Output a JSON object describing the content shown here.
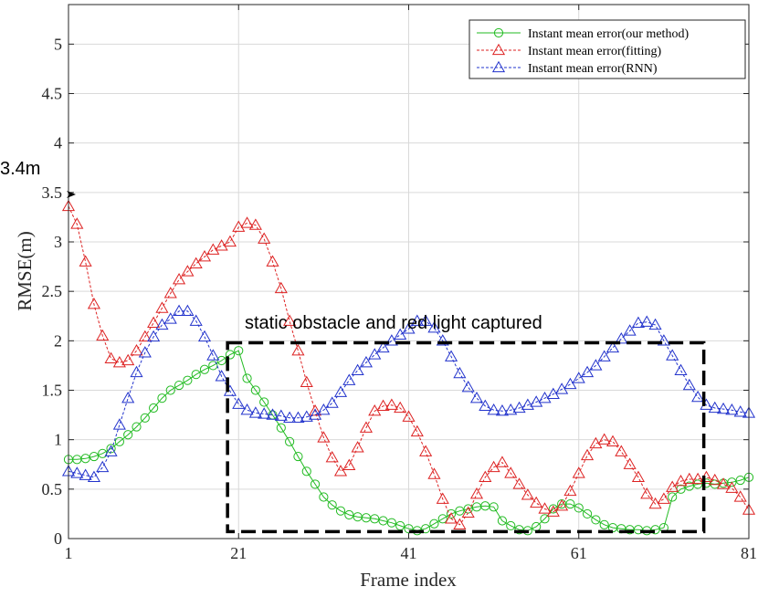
{
  "chart_data": {
    "type": "line",
    "xlabel": "Frame index",
    "ylabel": "RMSE(m)",
    "xlim": [
      1,
      81
    ],
    "ylim": [
      0,
      5.4
    ],
    "xticks": [
      "1",
      "21",
      "41",
      "61",
      "81"
    ],
    "yticks": [
      "0",
      "0.5",
      "1",
      "1.5",
      "2",
      "2.5",
      "3",
      "3.5",
      "4",
      "4.5",
      "5"
    ],
    "grid": true,
    "legend_position": "top-right",
    "annotations": {
      "start_label": "3.4m",
      "start_value": 3.48,
      "box_label": "static obstacle and red light captured",
      "box_x_range": [
        19.7,
        75.7
      ],
      "box_y_range": [
        0.07,
        1.98
      ]
    },
    "x": [
      1,
      2,
      3,
      4,
      5,
      6,
      7,
      8,
      9,
      10,
      11,
      12,
      13,
      14,
      15,
      16,
      17,
      18,
      19,
      20,
      21,
      22,
      23,
      24,
      25,
      26,
      27,
      28,
      29,
      30,
      31,
      32,
      33,
      34,
      35,
      36,
      37,
      38,
      39,
      40,
      41,
      42,
      43,
      44,
      45,
      46,
      47,
      48,
      49,
      50,
      51,
      52,
      53,
      54,
      55,
      56,
      57,
      58,
      59,
      60,
      61,
      62,
      63,
      64,
      65,
      66,
      67,
      68,
      69,
      70,
      71,
      72,
      73,
      74,
      75,
      76,
      77,
      78,
      79,
      80,
      81
    ],
    "series": [
      {
        "name": "Instant mean error(our method)",
        "color": "#22bb22",
        "dash": "solid",
        "marker": "circle",
        "values": [
          0.8,
          0.8,
          0.81,
          0.83,
          0.86,
          0.91,
          0.98,
          1.05,
          1.13,
          1.22,
          1.32,
          1.42,
          1.5,
          1.55,
          1.6,
          1.66,
          1.71,
          1.75,
          1.8,
          1.86,
          1.9,
          1.62,
          1.5,
          1.38,
          1.25,
          1.12,
          0.98,
          0.83,
          0.68,
          0.55,
          0.42,
          0.34,
          0.28,
          0.24,
          0.22,
          0.21,
          0.2,
          0.18,
          0.16,
          0.13,
          0.1,
          0.08,
          0.1,
          0.15,
          0.2,
          0.25,
          0.28,
          0.3,
          0.32,
          0.33,
          0.32,
          0.18,
          0.13,
          0.09,
          0.08,
          0.12,
          0.2,
          0.3,
          0.35,
          0.35,
          0.31,
          0.25,
          0.19,
          0.14,
          0.11,
          0.1,
          0.09,
          0.09,
          0.08,
          0.09,
          0.11,
          0.42,
          0.5,
          0.53,
          0.55,
          0.56,
          0.55,
          0.56,
          0.57,
          0.59,
          0.62
        ]
      },
      {
        "name": "Instant mean error(fitting)",
        "color": "#dd2222",
        "dash": "dashed",
        "marker": "triangle",
        "values": [
          3.36,
          3.18,
          2.8,
          2.37,
          2.05,
          1.82,
          1.78,
          1.8,
          1.9,
          2.04,
          2.18,
          2.33,
          2.48,
          2.62,
          2.7,
          2.78,
          2.85,
          2.92,
          2.96,
          3.0,
          3.15,
          3.19,
          3.17,
          3.03,
          2.8,
          2.53,
          2.2,
          1.9,
          1.58,
          1.29,
          1.02,
          0.82,
          0.68,
          0.74,
          0.92,
          1.12,
          1.29,
          1.34,
          1.35,
          1.32,
          1.23,
          1.08,
          0.88,
          0.65,
          0.4,
          0.2,
          0.14,
          0.26,
          0.45,
          0.62,
          0.72,
          0.77,
          0.66,
          0.55,
          0.44,
          0.36,
          0.3,
          0.27,
          0.33,
          0.48,
          0.66,
          0.84,
          0.96,
          1.0,
          0.98,
          0.88,
          0.75,
          0.62,
          0.45,
          0.35,
          0.4,
          0.52,
          0.58,
          0.6,
          0.6,
          0.62,
          0.59,
          0.55,
          0.51,
          0.42,
          0.29
        ]
      },
      {
        "name": "Instant mean error(RNN)",
        "color": "#2233cc",
        "dash": "dashed",
        "marker": "triangle",
        "values": [
          0.68,
          0.66,
          0.64,
          0.62,
          0.72,
          0.88,
          1.15,
          1.42,
          1.68,
          1.88,
          2.04,
          2.16,
          2.22,
          2.3,
          2.3,
          2.2,
          2.04,
          1.85,
          1.64,
          1.49,
          1.36,
          1.3,
          1.27,
          1.26,
          1.25,
          1.24,
          1.22,
          1.22,
          1.23,
          1.25,
          1.3,
          1.37,
          1.48,
          1.6,
          1.7,
          1.78,
          1.86,
          1.93,
          2.0,
          2.06,
          2.12,
          2.2,
          2.2,
          2.13,
          2.0,
          1.84,
          1.67,
          1.53,
          1.42,
          1.34,
          1.3,
          1.29,
          1.3,
          1.32,
          1.35,
          1.38,
          1.42,
          1.46,
          1.51,
          1.56,
          1.62,
          1.68,
          1.75,
          1.84,
          1.93,
          2.02,
          2.1,
          2.18,
          2.19,
          2.16,
          2.0,
          1.85,
          1.7,
          1.55,
          1.43,
          1.35,
          1.32,
          1.31,
          1.3,
          1.28,
          1.27
        ]
      }
    ]
  }
}
